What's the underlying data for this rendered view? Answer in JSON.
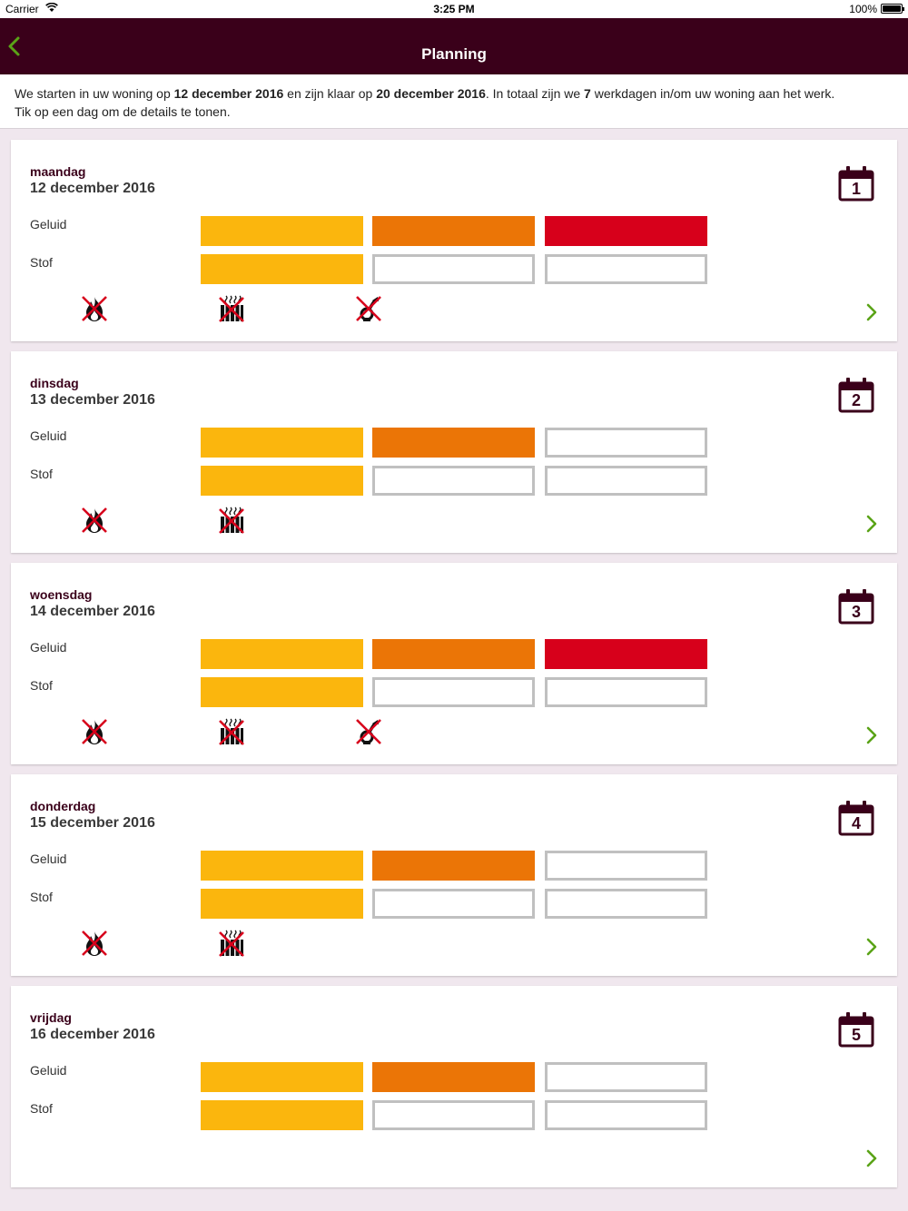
{
  "status": {
    "carrier": "Carrier",
    "time": "3:25 PM",
    "battery": "100%"
  },
  "nav": {
    "title": "Planning",
    "back_icon": "chevron-left-icon"
  },
  "intro": {
    "t1": "We starten in uw woning op ",
    "start": "12 december 2016",
    "t2": " en zijn klaar op ",
    "end": "20 december 2016",
    "t3": ". In totaal zijn we ",
    "days": "7",
    "t4": " werkdagen in/om uw woning aan het werk.",
    "t5": "Tik op een dag om de details te tonen."
  },
  "labels": {
    "noise": "Geluid",
    "dust": "Stof"
  },
  "colors": {
    "accent": "#3a001a",
    "level1": "#fbb60d",
    "level2": "#eb7506",
    "level3": "#d7001b",
    "chevron": "#5aa317"
  },
  "days": [
    {
      "dayname": "maandag",
      "date": "12 december 2016",
      "num": "1",
      "noise": 3,
      "dust": 1,
      "icons": [
        "no-fire-icon",
        "no-heating-icon",
        "no-gas-icon"
      ]
    },
    {
      "dayname": "dinsdag",
      "date": "13 december 2016",
      "num": "2",
      "noise": 2,
      "dust": 1,
      "icons": [
        "no-fire-icon",
        "no-heating-icon"
      ]
    },
    {
      "dayname": "woensdag",
      "date": "14 december 2016",
      "num": "3",
      "noise": 3,
      "dust": 1,
      "icons": [
        "no-fire-icon",
        "no-heating-icon",
        "no-gas-icon"
      ]
    },
    {
      "dayname": "donderdag",
      "date": "15 december 2016",
      "num": "4",
      "noise": 2,
      "dust": 1,
      "icons": [
        "no-fire-icon",
        "no-heating-icon"
      ]
    },
    {
      "dayname": "vrijdag",
      "date": "16 december 2016",
      "num": "5",
      "noise": 2,
      "dust": 1,
      "icons": []
    }
  ]
}
